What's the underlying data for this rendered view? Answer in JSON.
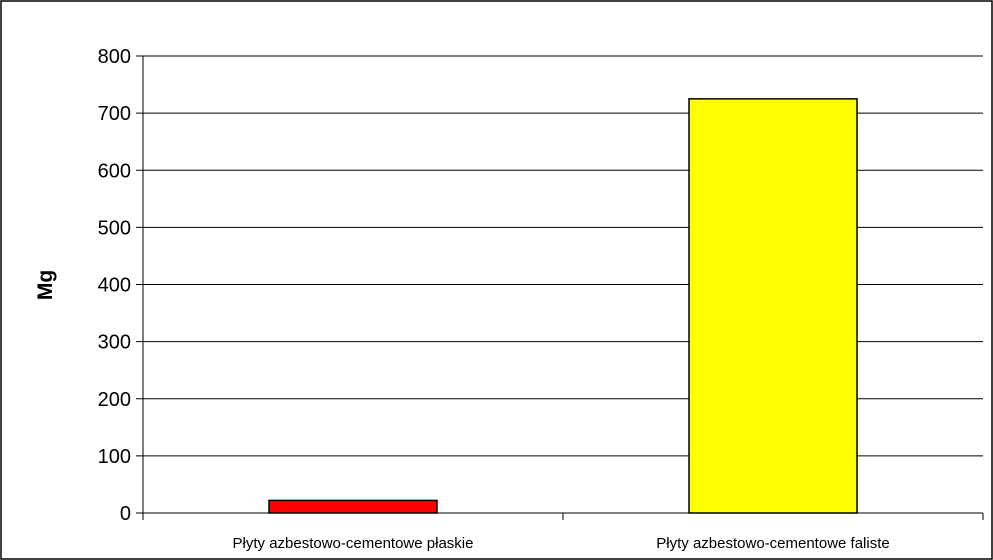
{
  "chart_data": {
    "type": "bar",
    "categories": [
      "Płyty azbestowo-cementowe płaskie",
      "Płyty azbestowo-cementowe faliste"
    ],
    "values": [
      22,
      725
    ],
    "title": "",
    "xlabel": "",
    "ylabel": "Mg",
    "ylim": [
      0,
      800
    ],
    "yticks": [
      0,
      100,
      200,
      300,
      400,
      500,
      600,
      700,
      800
    ],
    "ytick_labels": [
      "0",
      "100",
      "200",
      "300",
      "400",
      "500",
      "600",
      "700",
      "800"
    ],
    "grid": true,
    "legend": "none",
    "colors": [
      "#ff0000",
      "#ffff00"
    ],
    "grid_color": "#000000",
    "bar_edge_color": "#000000"
  }
}
